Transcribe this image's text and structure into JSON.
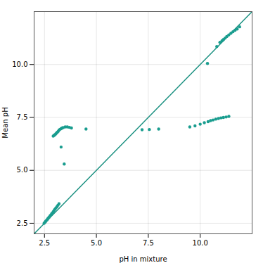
{
  "chart_data": {
    "type": "scatter",
    "xlabel": "pH in mixture",
    "ylabel": "Mean pH",
    "xlim": [
      2.0,
      12.5
    ],
    "ylim": [
      2.0,
      12.5
    ],
    "xticks": [
      2.5,
      {
        "value": 5.0,
        "label": "5.0"
      },
      7.5,
      {
        "value": 10.0,
        "label": "10.0"
      }
    ],
    "yticks": [
      2.5,
      {
        "value": 5.0,
        "label": "5.0"
      },
      7.5,
      {
        "value": 10.0,
        "label": "10.0"
      }
    ],
    "grid": true,
    "series": [
      {
        "type": "line",
        "color": "#1a9080",
        "x": [
          2.0,
          12.5
        ],
        "values": [
          2.0,
          12.5
        ]
      },
      {
        "type": "scatter",
        "color": "#1a9d8f",
        "x": [
          2.48,
          2.52,
          2.55,
          2.58,
          2.62,
          2.65,
          2.68,
          2.72,
          2.76,
          2.8,
          2.84,
          2.88,
          2.92,
          2.96,
          3.0,
          3.05,
          3.1,
          3.15,
          3.2
        ],
        "values": [
          2.5,
          2.54,
          2.58,
          2.62,
          2.66,
          2.7,
          2.74,
          2.78,
          2.84,
          2.88,
          2.94,
          2.98,
          3.04,
          3.1,
          3.16,
          3.22,
          3.28,
          3.35,
          3.42
        ]
      },
      {
        "type": "scatter",
        "color": "#1a9d8f",
        "x": [
          2.92,
          2.96,
          3.0,
          3.04,
          3.08,
          3.12,
          3.16,
          3.2,
          3.25,
          3.3,
          3.35,
          3.4,
          3.5,
          3.6,
          3.7,
          3.8,
          4.5
        ],
        "values": [
          6.62,
          6.65,
          6.68,
          6.72,
          6.76,
          6.8,
          6.84,
          6.9,
          6.94,
          6.97,
          7.0,
          7.02,
          7.05,
          7.05,
          7.03,
          7.0,
          6.95
        ]
      },
      {
        "type": "scatter",
        "color": "#1a9d8f",
        "x": [
          3.3,
          3.45
        ],
        "values": [
          6.1,
          5.3
        ]
      },
      {
        "type": "scatter",
        "color": "#1a9d8f",
        "x": [
          7.2,
          7.55,
          8.0,
          9.5,
          9.75,
          10.0,
          10.2,
          10.38,
          10.5,
          10.62,
          10.75,
          10.88,
          11.0,
          11.12,
          11.25,
          11.38
        ],
        "values": [
          6.92,
          6.93,
          6.95,
          7.05,
          7.1,
          7.18,
          7.25,
          7.3,
          7.35,
          7.38,
          7.42,
          7.45,
          7.48,
          7.5,
          7.52,
          7.55
        ]
      },
      {
        "type": "scatter",
        "color": "#1a9d8f",
        "x": [
          10.35,
          10.8,
          10.95,
          11.05,
          11.12,
          11.2,
          11.28,
          11.38,
          11.48,
          11.58,
          11.68,
          11.78,
          11.9
        ],
        "values": [
          10.05,
          10.85,
          11.05,
          11.12,
          11.18,
          11.25,
          11.32,
          11.4,
          11.48,
          11.55,
          11.62,
          11.68,
          11.78
        ]
      }
    ]
  }
}
